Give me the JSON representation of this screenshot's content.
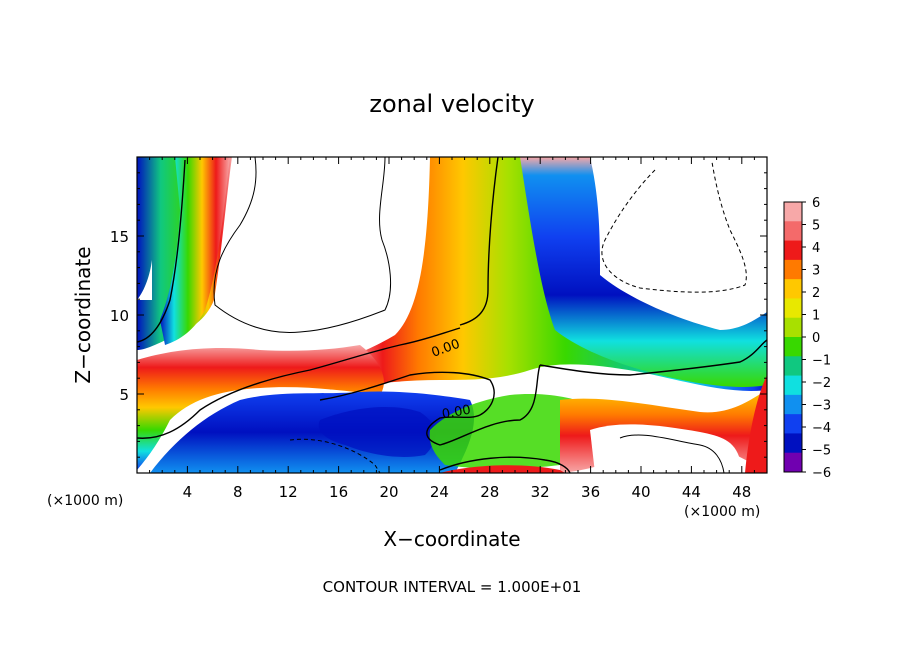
{
  "chart_data": {
    "type": "heatmap",
    "title": "zonal velocity",
    "xlabel": "X−coordinate",
    "ylabel": "Z−coordinate",
    "x_unit_label": "(×1000 m)",
    "y_unit_label": "(×1000 m)",
    "xlim": [
      0,
      50
    ],
    "ylim": [
      0,
      20
    ],
    "x_ticks": [
      4,
      8,
      12,
      16,
      20,
      24,
      28,
      32,
      36,
      40,
      44,
      48
    ],
    "y_ticks": [
      5,
      10,
      15
    ],
    "colorbar": {
      "range": [
        -6,
        6
      ],
      "ticks": [
        6,
        5,
        4,
        3,
        2,
        1,
        0,
        -1,
        -2,
        -3,
        -4,
        -5,
        -6
      ],
      "tick_labels": [
        "6",
        "5",
        "4",
        "3",
        "2",
        "1",
        "0",
        "−1",
        "−2",
        "−3",
        "−4",
        "−5",
        "−6"
      ],
      "colors": [
        "#f7a8a8",
        "#f46a6a",
        "#ee1a1a",
        "#ff7a00",
        "#ffc800",
        "#e8e800",
        "#a8e000",
        "#38d800",
        "#10c880",
        "#10e0e0",
        "#1090f0",
        "#1040f0",
        "#0010c0",
        "#7000b0"
      ]
    },
    "contour_labels": [
      "0.00",
      "0.00"
    ],
    "footer": "CONTOUR INTERVAL = 1.000E+01"
  }
}
